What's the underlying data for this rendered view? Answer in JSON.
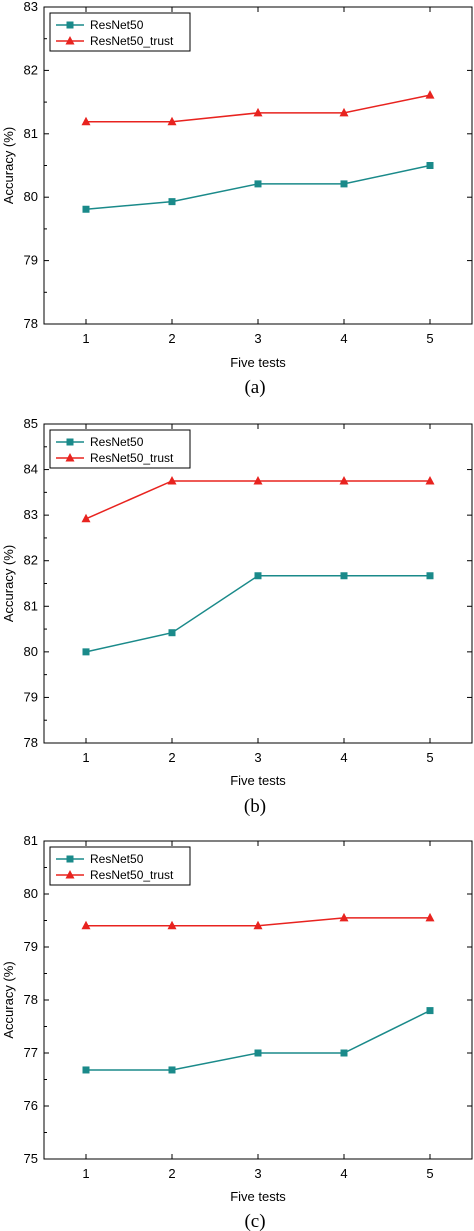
{
  "chart_data": [
    {
      "type": "line",
      "caption": "(a)",
      "xlabel": "Five tests",
      "ylabel": "Accuracy (%)",
      "categories": [
        "1",
        "2",
        "3",
        "4",
        "5"
      ],
      "yticks": [
        "78",
        "79",
        "80",
        "81",
        "82",
        "83"
      ],
      "ylim": [
        78,
        83
      ],
      "legend_position": "top-left",
      "grid": false,
      "series": [
        {
          "name": "ResNet50",
          "color": "#1a8a8a",
          "marker": "square",
          "values": [
            79.81,
            79.93,
            80.21,
            80.21,
            80.5
          ]
        },
        {
          "name": "ResNet50_trust",
          "color": "#e8231f",
          "marker": "triangle",
          "values": [
            81.19,
            81.19,
            81.33,
            81.33,
            81.61
          ]
        }
      ]
    },
    {
      "type": "line",
      "caption": "(b)",
      "xlabel": "Five tests",
      "ylabel": "Accuracy (%)",
      "categories": [
        "1",
        "2",
        "3",
        "4",
        "5"
      ],
      "yticks": [
        "78",
        "79",
        "80",
        "81",
        "82",
        "83",
        "84",
        "85"
      ],
      "ylim": [
        78,
        85
      ],
      "legend_position": "top-left",
      "grid": false,
      "series": [
        {
          "name": "ResNet50",
          "color": "#1a8a8a",
          "marker": "square",
          "values": [
            80.0,
            80.42,
            81.67,
            81.67,
            81.67
          ]
        },
        {
          "name": "ResNet50_trust",
          "color": "#e8231f",
          "marker": "triangle",
          "values": [
            82.92,
            83.75,
            83.75,
            83.75,
            83.75
          ]
        }
      ]
    },
    {
      "type": "line",
      "caption": "(c)",
      "xlabel": "Five tests",
      "ylabel": "Accuracy (%)",
      "categories": [
        "1",
        "2",
        "3",
        "4",
        "5"
      ],
      "yticks": [
        "75",
        "76",
        "77",
        "78",
        "79",
        "80",
        "81"
      ],
      "ylim": [
        75,
        81
      ],
      "legend_position": "top-left",
      "grid": false,
      "series": [
        {
          "name": "ResNet50",
          "color": "#1a8a8a",
          "marker": "square",
          "values": [
            76.68,
            76.68,
            77.0,
            77.0,
            77.8
          ]
        },
        {
          "name": "ResNet50_trust",
          "color": "#e8231f",
          "marker": "triangle",
          "values": [
            79.4,
            79.4,
            79.4,
            79.55,
            79.55
          ]
        }
      ]
    }
  ]
}
